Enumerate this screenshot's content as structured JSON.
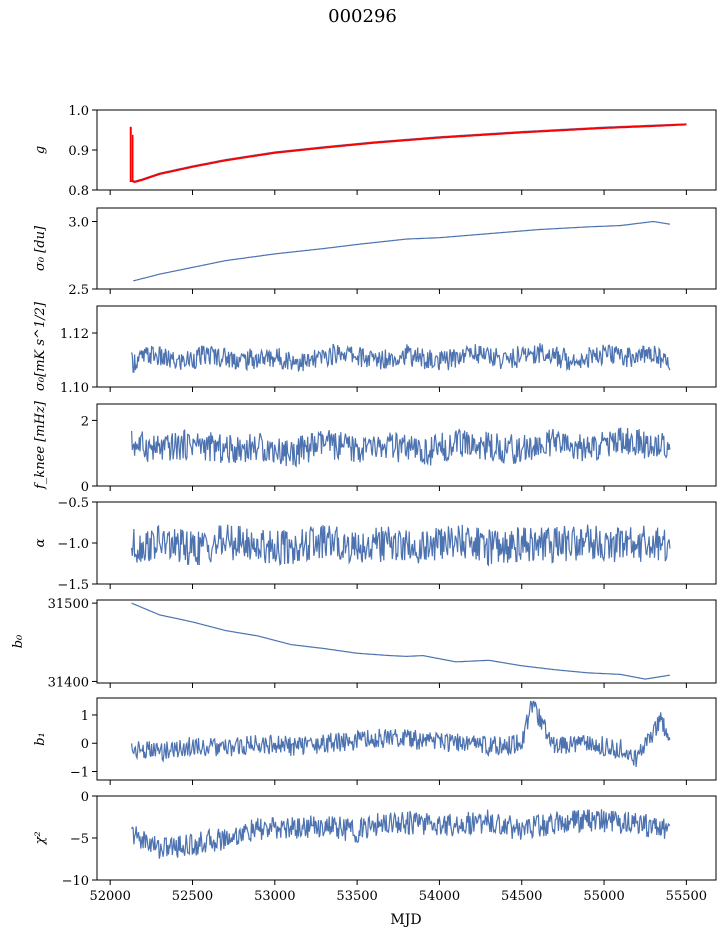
{
  "figure": {
    "title": "000296",
    "xlabel": "MJD"
  },
  "chart_data": [
    {
      "type": "line",
      "ylabel": "g",
      "ylim": [
        0.8,
        1.0
      ],
      "yticks": [
        0.8,
        0.9,
        1.0
      ],
      "ytick_labels": [
        "0.8",
        "0.9",
        "1.0"
      ],
      "xlim": [
        51920,
        55680
      ],
      "series": [
        {
          "color": "#4c72b0",
          "x": [
            52130,
            52150,
            52200,
            52300,
            52500,
            52700,
            53000,
            53300,
            53600,
            54000,
            54500,
            55000,
            55300,
            55500
          ],
          "y": [
            0.825,
            0.822,
            0.828,
            0.842,
            0.86,
            0.876,
            0.895,
            0.908,
            0.92,
            0.933,
            0.946,
            0.957,
            0.962,
            0.965
          ]
        },
        {
          "color": "#ff0000",
          "x": [
            52130,
            52150,
            52200,
            52300,
            52500,
            52700,
            53000,
            53300,
            53600,
            54000,
            54500,
            55000,
            55300,
            55500
          ],
          "y": [
            0.823,
            0.82,
            0.826,
            0.84,
            0.858,
            0.874,
            0.893,
            0.906,
            0.918,
            0.931,
            0.944,
            0.955,
            0.96,
            0.964
          ]
        }
      ],
      "spikes": [
        {
          "color": "#ff0000",
          "x": 52125,
          "y_low": 0.82,
          "y_high": 0.958
        }
      ]
    },
    {
      "type": "line",
      "ylabel": "σ₀ [du]",
      "ylim": [
        2.5,
        3.1
      ],
      "yticks": [
        2.5,
        3.0
      ],
      "ytick_labels": [
        "2.5",
        "3.0"
      ],
      "xlim": [
        51920,
        55680
      ],
      "series": [
        {
          "color": "#4c72b0",
          "x": [
            52140,
            52300,
            52500,
            52700,
            53000,
            53300,
            53500,
            53800,
            54000,
            54300,
            54600,
            54900,
            55100,
            55300,
            55400
          ],
          "y": [
            2.56,
            2.61,
            2.66,
            2.71,
            2.76,
            2.8,
            2.83,
            2.87,
            2.88,
            2.91,
            2.94,
            2.96,
            2.97,
            3.0,
            2.98
          ]
        }
      ]
    },
    {
      "type": "line",
      "ylabel": "σ₀[mK s^1/2]",
      "ylim": [
        1.1,
        1.13
      ],
      "yticks": [
        1.1,
        1.12
      ],
      "ytick_labels": [
        "1.10",
        "1.12"
      ],
      "xlim": [
        51920,
        55680
      ],
      "series": [
        {
          "color": "#4c72b0",
          "x": [
            52130,
            52250,
            52400,
            52600,
            52800,
            53000,
            53200,
            53400,
            53600,
            53800,
            54000,
            54200,
            54400,
            54600,
            54800,
            55000,
            55200,
            55300,
            55400
          ],
          "y": [
            1.109,
            1.112,
            1.109,
            1.112,
            1.11,
            1.111,
            1.109,
            1.113,
            1.11,
            1.112,
            1.109,
            1.113,
            1.11,
            1.113,
            1.11,
            1.112,
            1.111,
            1.113,
            1.108
          ]
        }
      ]
    },
    {
      "type": "line",
      "ylabel": "f_knee [mHz]",
      "ylim": [
        0,
        2.5
      ],
      "yticks": [
        0,
        2
      ],
      "ytick_labels": [
        "0",
        "2"
      ],
      "xlim": [
        51920,
        55680
      ],
      "series": [
        {
          "color": "#4c72b0",
          "x": [
            52130,
            52300,
            52500,
            52700,
            52900,
            53100,
            53300,
            53500,
            53700,
            53900,
            54100,
            54300,
            54500,
            54700,
            54900,
            55100,
            55300,
            55400
          ],
          "y": [
            1.3,
            1.1,
            1.3,
            1.1,
            1.2,
            1.0,
            1.3,
            1.1,
            1.2,
            1.0,
            1.3,
            1.2,
            1.1,
            1.3,
            1.1,
            1.4,
            1.2,
            1.3
          ]
        }
      ]
    },
    {
      "type": "line",
      "ylabel": "α",
      "ylim": [
        -1.5,
        -0.5
      ],
      "yticks": [
        -1.5,
        -1.0,
        -0.5
      ],
      "ytick_labels": [
        "−1.5",
        "−1.0",
        "−0.5"
      ],
      "xlim": [
        51920,
        55680
      ],
      "series": [
        {
          "color": "#4c72b0",
          "x": [
            52130,
            52300,
            52500,
            52700,
            52900,
            53100,
            53300,
            53500,
            53700,
            53900,
            54100,
            54300,
            54500,
            54700,
            54900,
            55100,
            55300,
            55400
          ],
          "y": [
            -1.05,
            -1.0,
            -1.08,
            -0.98,
            -1.03,
            -1.06,
            -0.99,
            -1.04,
            -1.01,
            -1.07,
            -0.97,
            -1.05,
            -1.0,
            -1.02,
            -0.98,
            -1.03,
            -1.0,
            -1.05
          ]
        }
      ]
    },
    {
      "type": "line",
      "ylabel": "b₀",
      "ylim": [
        31398,
        31504
      ],
      "yticks": [
        31400,
        31500
      ],
      "ytick_labels": [
        "31400",
        "31500"
      ],
      "xlim": [
        51920,
        55680
      ],
      "series": [
        {
          "color": "#4c72b0",
          "x": [
            52130,
            52300,
            52500,
            52700,
            52900,
            53100,
            53300,
            53500,
            53700,
            53800,
            53900,
            54100,
            54300,
            54500,
            54700,
            54900,
            55100,
            55250,
            55400
          ],
          "y": [
            31500,
            31485,
            31476,
            31465,
            31458,
            31447,
            31442,
            31436,
            31433,
            31432,
            31433,
            31425,
            31427,
            31420,
            31415,
            31411,
            31409,
            31403,
            31408
          ]
        }
      ]
    },
    {
      "type": "line",
      "ylabel": "b₁",
      "ylim": [
        -1.3,
        1.6
      ],
      "yticks": [
        -1,
        0,
        1
      ],
      "ytick_labels": [
        "−1",
        "0",
        "1"
      ],
      "xlim": [
        51920,
        55680
      ],
      "series": [
        {
          "color": "#4c72b0",
          "x": [
            52130,
            52300,
            52500,
            52700,
            52900,
            53100,
            53300,
            53500,
            53700,
            53900,
            54100,
            54300,
            54500,
            54560,
            54700,
            54900,
            55100,
            55200,
            55350,
            55400
          ],
          "y": [
            -0.2,
            -0.3,
            -0.1,
            -0.2,
            0.0,
            -0.1,
            0.0,
            0.1,
            0.2,
            0.1,
            0.0,
            -0.1,
            0.0,
            1.4,
            -0.1,
            0.0,
            -0.2,
            -0.6,
            0.9,
            0.0
          ]
        }
      ]
    },
    {
      "type": "line",
      "ylabel": "χ²",
      "ylim": [
        -10,
        0
      ],
      "yticks": [
        -10,
        -5,
        0
      ],
      "ytick_labels": [
        "−10",
        "−5",
        "0"
      ],
      "xticks": [
        52000,
        52500,
        53000,
        53500,
        54000,
        54500,
        55000,
        55500
      ],
      "xtick_labels": [
        "52000",
        "52500",
        "53000",
        "53500",
        "54000",
        "54500",
        "55000",
        "55500"
      ],
      "xlim": [
        51920,
        55680
      ],
      "series": [
        {
          "color": "#4c72b0",
          "x": [
            52130,
            52300,
            52500,
            52700,
            52900,
            53100,
            53300,
            53500,
            53700,
            53900,
            54100,
            54300,
            54500,
            54700,
            54900,
            55100,
            55300,
            55400
          ],
          "y": [
            -4.5,
            -6.2,
            -5.8,
            -5.0,
            -4.0,
            -3.8,
            -3.5,
            -4.2,
            -3.0,
            -3.3,
            -3.4,
            -3.0,
            -4.0,
            -3.2,
            -2.8,
            -3.1,
            -3.6,
            -3.9
          ]
        }
      ]
    }
  ]
}
